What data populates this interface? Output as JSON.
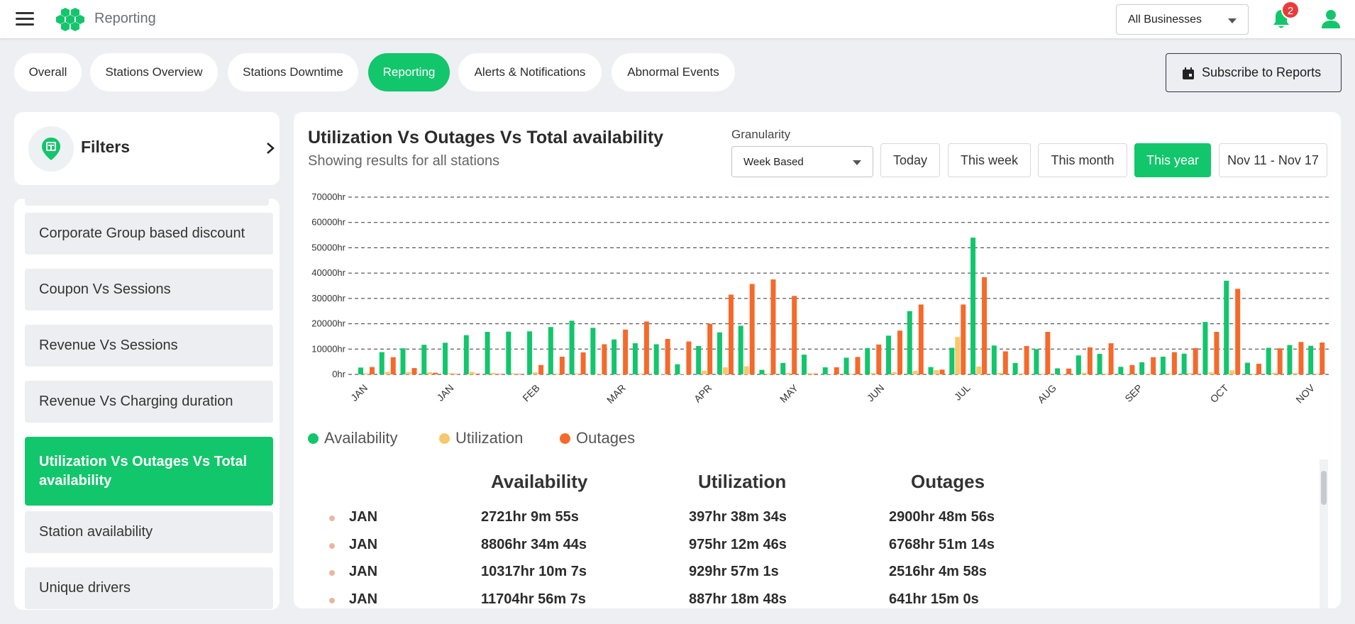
{
  "header": {
    "app_title": "Reporting",
    "business_select": "All Businesses",
    "notification_count": "2",
    "brand_color": "#12c66b"
  },
  "tabs": [
    {
      "label": "Overall",
      "active": false
    },
    {
      "label": "Stations Overview",
      "active": false
    },
    {
      "label": "Stations Downtime",
      "active": false
    },
    {
      "label": "Reporting",
      "active": true
    },
    {
      "label": "Alerts & Notifications",
      "active": false
    },
    {
      "label": "Abnormal Events",
      "active": false
    }
  ],
  "subscribe_label": "Subscribe to Reports",
  "filters": {
    "title": "Filters"
  },
  "reports": [
    {
      "label": "Corporate Group based discount",
      "active": false
    },
    {
      "label": "Coupon Vs Sessions",
      "active": false
    },
    {
      "label": "Revenue Vs Sessions",
      "active": false
    },
    {
      "label": "Revenue Vs Charging duration",
      "active": false
    },
    {
      "label": "Utilization Vs Outages Vs Total availability",
      "active": true
    },
    {
      "label": "Station availability",
      "active": false
    },
    {
      "label": "Unique drivers",
      "active": false
    }
  ],
  "panel": {
    "title": "Utilization Vs Outages Vs Total availability",
    "subtitle": "Showing results for all stations",
    "granularity_label": "Granularity",
    "granularity_value": "Week Based",
    "ranges": [
      {
        "label": "Today",
        "active": false
      },
      {
        "label": "This week",
        "active": false
      },
      {
        "label": "This month",
        "active": false
      },
      {
        "label": "This year",
        "active": true
      },
      {
        "label": "Nov 11 - Nov 17",
        "active": false
      }
    ]
  },
  "chart_data": {
    "type": "bar",
    "ylim": [
      0,
      70000
    ],
    "yticks": [
      "0hr",
      "10000hr",
      "20000hr",
      "30000hr",
      "40000hr",
      "50000hr",
      "60000hr",
      "70000hr"
    ],
    "x_tick_labels": [
      "JAN",
      "JAN",
      "FEB",
      "MAR",
      "APR",
      "MAY",
      "JUN",
      "JUL",
      "AUG",
      "SEP",
      "OCT",
      "NOV"
    ],
    "grid": true,
    "legend_position": "bottom-left",
    "series": [
      {
        "name": "Availability",
        "color": "#12c66b",
        "values": [
          2700,
          8800,
          10300,
          11700,
          12500,
          15500,
          16800,
          16900,
          17000,
          18700,
          21200,
          18400,
          13800,
          12300,
          11900,
          4000,
          11200,
          16600,
          19200,
          1800,
          4500,
          7800,
          2800,
          6600,
          10400,
          15300,
          25000,
          2900,
          10500,
          54000,
          11400,
          4500,
          10000,
          2400,
          7500,
          8100,
          3000,
          4800,
          7000,
          8200,
          20700,
          37000,
          4600,
          10500,
          11600,
          11300
        ]
      },
      {
        "name": "Utilization",
        "color": "#f8c76d",
        "values": [
          400,
          980,
          930,
          890,
          500,
          1000,
          600,
          400,
          800,
          300,
          400,
          300,
          200,
          300,
          200,
          100,
          1500,
          2800,
          3200,
          300,
          600,
          500,
          200,
          300,
          600,
          900,
          1400,
          1700,
          14800,
          3100,
          600,
          400,
          300,
          200,
          600,
          300,
          200,
          300,
          400,
          500,
          800,
          1600,
          300,
          600,
          500,
          300
        ]
      },
      {
        "name": "Outages",
        "color": "#f56a2b",
        "values": [
          2900,
          6800,
          2500,
          640,
          200,
          300,
          200,
          200,
          3700,
          7000,
          8700,
          11900,
          17700,
          20900,
          14000,
          13000,
          20000,
          31500,
          35700,
          37500,
          31000,
          300,
          2800,
          6900,
          11800,
          17300,
          27600,
          1900,
          27600,
          38400,
          9100,
          11200,
          16800,
          2300,
          10700,
          12300,
          3700,
          6800,
          8800,
          10400,
          16800,
          33800,
          4200,
          10300,
          12800,
          12600
        ]
      }
    ]
  },
  "table": {
    "headers": [
      "Availability",
      "Utilization",
      "Outages"
    ],
    "rows": [
      {
        "month": "JAN",
        "availability": "2721hr 9m 55s",
        "utilization": "397hr 38m 34s",
        "outages": "2900hr 48m 56s"
      },
      {
        "month": "JAN",
        "availability": "8806hr 34m 44s",
        "utilization": "975hr 12m 46s",
        "outages": "6768hr 51m 14s"
      },
      {
        "month": "JAN",
        "availability": "10317hr 10m 7s",
        "utilization": "929hr 57m 1s",
        "outages": "2516hr 4m 58s"
      },
      {
        "month": "JAN",
        "availability": "11704hr 56m 7s",
        "utilization": "887hr 18m 48s",
        "outages": "641hr 15m 0s"
      }
    ]
  }
}
